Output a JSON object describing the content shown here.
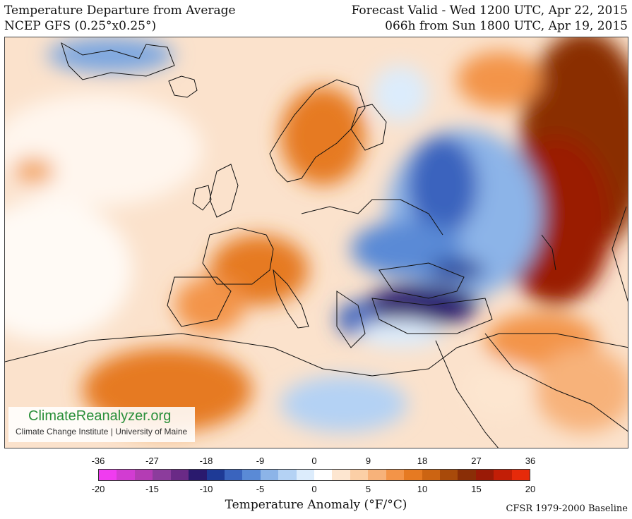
{
  "header": {
    "title": "Temperature Departure from Average",
    "model": "NCEP GFS (0.25°x0.25°)",
    "valid": "Forecast Valid - Wed 1200 UTC, Apr 22, 2015",
    "lead": "066h from Sun 1800 UTC, Apr 19, 2015"
  },
  "badge": {
    "name": "ClimateReanalyzer.org",
    "org": "Climate Change Institute | University of Maine"
  },
  "legend": {
    "fahrenheit_ticks": [
      "-36",
      "-27",
      "-18",
      "-9",
      "0",
      "9",
      "18",
      "27",
      "36"
    ],
    "celsius_ticks": [
      "-20",
      "-15",
      "-10",
      "-5",
      "0",
      "5",
      "10",
      "15",
      "20"
    ],
    "title": "Temperature Anomaly (°F/°C)",
    "baseline": "CFSR 1979-2000 Baseline",
    "colors": [
      "#f03cf0",
      "#d23cd2",
      "#b43cb4",
      "#8c3c9c",
      "#6a2a86",
      "#2a1a6e",
      "#1e3a96",
      "#3a64be",
      "#5a8ad6",
      "#8cb4e8",
      "#b4d2f4",
      "#dcecfc",
      "#ffffff",
      "#fde6d0",
      "#fbcfa6",
      "#f7b27a",
      "#f39448",
      "#e67a22",
      "#cc6412",
      "#a84a0a",
      "#8a2e06",
      "#9a1a06",
      "#c21e06",
      "#e62a0a"
    ]
  }
}
